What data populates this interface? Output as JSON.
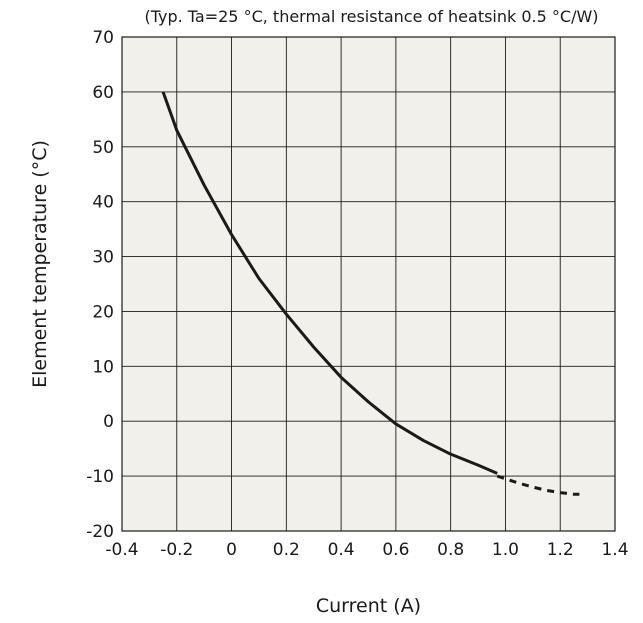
{
  "chart_data": {
    "type": "line",
    "title": "",
    "subtitle": "(Typ. Ta=25 °C, thermal resistance of heatsink 0.5 °C/W)",
    "xlabel": "Current (A)",
    "ylabel": "Element temperature (°C)",
    "xlim": [
      -0.4,
      1.4
    ],
    "ylim": [
      -20,
      70
    ],
    "x_ticks": [
      -0.4,
      -0.2,
      0,
      0.2,
      0.4,
      0.6,
      0.8,
      1.0,
      1.2,
      1.4
    ],
    "x_tick_labels": [
      "-0.4",
      "-0.2",
      "0",
      "0.2",
      "0.4",
      "0.6",
      "0.8",
      "1.0",
      "1.2",
      "1.4"
    ],
    "y_ticks": [
      -20,
      -10,
      0,
      10,
      20,
      30,
      40,
      50,
      60,
      70
    ],
    "y_tick_labels": [
      "-20",
      "-10",
      "0",
      "10",
      "20",
      "30",
      "40",
      "50",
      "60",
      "70"
    ],
    "grid": true,
    "plot_background": "#f2f0ea",
    "line_color": "#1a1a1a",
    "series": [
      {
        "style": "solid",
        "x": [
          -0.25,
          -0.2,
          -0.1,
          0.0,
          0.1,
          0.2,
          0.3,
          0.4,
          0.5,
          0.6,
          0.7,
          0.8,
          0.9,
          0.97
        ],
        "y": [
          60,
          53,
          43,
          34,
          26,
          19.5,
          13.5,
          8,
          3.5,
          -0.5,
          -3.5,
          -6,
          -8,
          -9.5
        ]
      },
      {
        "style": "dashed",
        "x": [
          0.97,
          1.05,
          1.1,
          1.15,
          1.2,
          1.25,
          1.27
        ],
        "y": [
          -10,
          -11.3,
          -12,
          -12.6,
          -13,
          -13.3,
          -13.3
        ]
      }
    ]
  }
}
